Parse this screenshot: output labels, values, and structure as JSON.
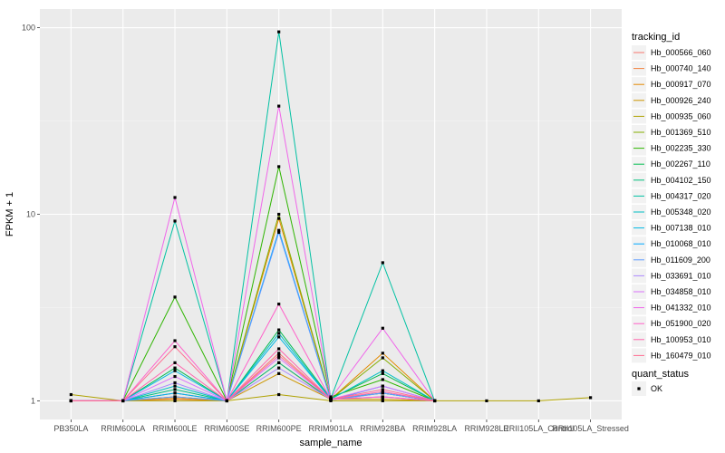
{
  "chart_data": {
    "type": "line",
    "xlabel": "sample_name",
    "ylabel": "FPKM + 1",
    "y_scale": "log10",
    "ylim": [
      1,
      100
    ],
    "yticks": [
      1,
      10,
      100
    ],
    "grid": true,
    "legend_position": "right",
    "categories": [
      "PB350LA",
      "RRIM600LA",
      "RRIM600LE",
      "RRIM600SE",
      "RRIM600PE",
      "RRIM901LA",
      "RRIM928BA",
      "RRIM928LA",
      "RRIM928LE",
      "RRII105LA_Control",
      "RRII105LA_Stressed"
    ],
    "legend_title": "tracking_id",
    "series": [
      {
        "name": "Hb_000566_060",
        "color": "#F8766D",
        "values": [
          1,
          1,
          1.05,
          1,
          1.8,
          1.02,
          1.05,
          1,
          null,
          null,
          null
        ]
      },
      {
        "name": "Hb_000740_140",
        "color": "#F2813F",
        "values": [
          1,
          1,
          1.02,
          1,
          1.6,
          1.01,
          1.1,
          1,
          null,
          null,
          null
        ]
      },
      {
        "name": "Hb_000917_070",
        "color": "#E38900",
        "values": [
          1,
          1,
          1.03,
          1,
          9.5,
          1.02,
          1.8,
          1,
          null,
          null,
          null
        ]
      },
      {
        "name": "Hb_000926_240",
        "color": "#CD9600",
        "values": [
          1,
          1,
          1.05,
          1,
          1.4,
          1.02,
          1.02,
          1,
          null,
          null,
          null
        ]
      },
      {
        "name": "Hb_000935_060",
        "color": "#AFA100",
        "values": [
          1.08,
          1,
          1,
          1,
          1.08,
          1,
          1,
          1,
          1,
          1,
          1.04
        ]
      },
      {
        "name": "Hb_001369_510",
        "color": "#84AD00",
        "values": [
          1,
          1,
          1.1,
          1,
          10,
          1.02,
          1.7,
          1,
          null,
          null,
          null
        ]
      },
      {
        "name": "Hb_002235_330",
        "color": "#2EB500",
        "values": [
          1,
          1,
          3.6,
          1,
          18,
          1.05,
          1.3,
          1,
          null,
          null,
          null
        ]
      },
      {
        "name": "Hb_002267_110",
        "color": "#00BB4E",
        "values": [
          1,
          1,
          1.5,
          1,
          2.4,
          1.03,
          1.4,
          1,
          null,
          null,
          null
        ]
      },
      {
        "name": "Hb_004102_150",
        "color": "#00BF7D",
        "values": [
          1,
          1,
          1.15,
          1,
          1.6,
          1.02,
          1.1,
          1,
          null,
          null,
          null
        ]
      },
      {
        "name": "Hb_004317_020",
        "color": "#00C1A3",
        "values": [
          1,
          1,
          9.2,
          1,
          95,
          1.03,
          5.5,
          1,
          null,
          null,
          null
        ]
      },
      {
        "name": "Hb_005348_020",
        "color": "#00BFC4",
        "values": [
          1,
          1,
          1.2,
          1,
          2.3,
          1.02,
          1.45,
          1,
          null,
          null,
          null
        ]
      },
      {
        "name": "Hb_007138_010",
        "color": "#00B8E5",
        "values": [
          1,
          1,
          1.45,
          1,
          2.2,
          1.02,
          1.1,
          1,
          null,
          null,
          null
        ]
      },
      {
        "name": "Hb_010068_010",
        "color": "#00A9FF",
        "values": [
          1,
          1,
          1.1,
          1,
          8.2,
          1.01,
          1.2,
          1,
          null,
          null,
          null
        ]
      },
      {
        "name": "Hb_011609_200",
        "color": "#619CFF",
        "values": [
          1,
          1,
          1.05,
          1,
          8,
          1.01,
          1.1,
          1,
          null,
          null,
          null
        ]
      },
      {
        "name": "Hb_033691_010",
        "color": "#AC88FF",
        "values": [
          1,
          1,
          1.25,
          1,
          1.5,
          1.02,
          1.05,
          1,
          null,
          null,
          null
        ]
      },
      {
        "name": "Hb_034858_010",
        "color": "#DB72FB",
        "values": [
          1,
          1,
          1.35,
          1,
          1.7,
          1.02,
          1.2,
          1,
          null,
          null,
          null
        ]
      },
      {
        "name": "Hb_041332_010",
        "color": "#F066EA",
        "values": [
          1,
          1,
          12.3,
          1,
          38,
          1.03,
          2.45,
          1,
          null,
          null,
          null
        ]
      },
      {
        "name": "Hb_051900_020",
        "color": "#FF61C9",
        "values": [
          1,
          1,
          2.1,
          1,
          3.3,
          1.02,
          1.05,
          1,
          null,
          null,
          null
        ]
      },
      {
        "name": "Hb_100953_010",
        "color": "#FF65AC",
        "values": [
          1,
          1,
          1.6,
          1,
          1.9,
          1.02,
          1.12,
          1,
          null,
          null,
          null
        ]
      },
      {
        "name": "Hb_160479_010",
        "color": "#FF6C91",
        "values": [
          1,
          1,
          1.95,
          1,
          1.75,
          1.02,
          1.15,
          1,
          null,
          null,
          null
        ]
      }
    ],
    "shape_legend": {
      "title": "quant_status",
      "items": [
        "OK"
      ]
    }
  }
}
